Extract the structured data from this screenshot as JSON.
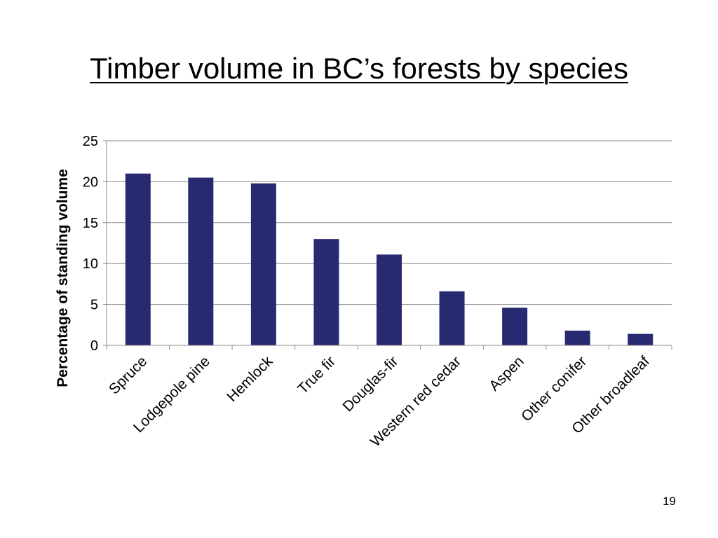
{
  "slide": {
    "title": "Timber volume in BC’s forests by species",
    "page_number": "19"
  },
  "colors": {
    "bar": "#272A70",
    "gridline": "#8C8C8C",
    "axis": "#8C8C8C",
    "background": "#FFFFFF"
  },
  "chart_data": {
    "type": "bar",
    "title": "",
    "xlabel": "",
    "ylabel": "Percentage of standing volume",
    "categories": [
      "Spruce",
      "Lodgepole pine",
      "Hemlock",
      "True fir",
      "Douglas-fir",
      "Western red cedar",
      "Aspen",
      "Other conifer",
      "Other broadleaf"
    ],
    "values": [
      21,
      20.5,
      19.8,
      13,
      11.1,
      6.6,
      4.6,
      1.8,
      1.4
    ],
    "ylim": [
      0,
      25
    ],
    "yticks": [
      "0",
      "5",
      "10",
      "15",
      "20",
      "25"
    ],
    "grid": true,
    "legend": "none"
  }
}
